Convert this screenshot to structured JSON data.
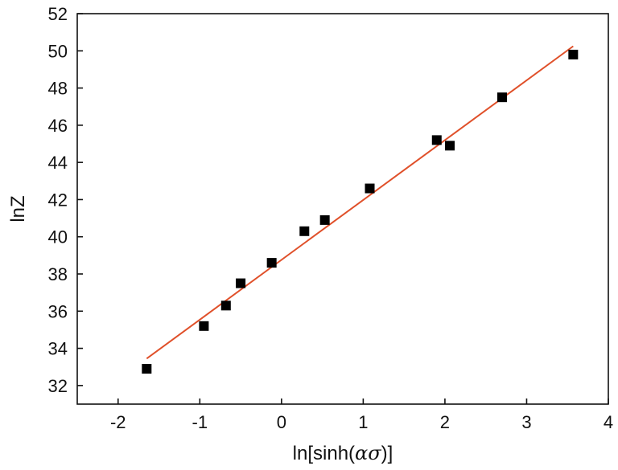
{
  "chart_data": {
    "type": "scatter",
    "xlabel_prefix": "ln[sinh(",
    "xlabel_math": "ασ",
    "xlabel_suffix": ")]",
    "ylabel": "lnZ",
    "xlim": [
      -2.5,
      4
    ],
    "ylim": [
      31,
      52
    ],
    "xticks": [
      -2,
      -1,
      0,
      1,
      2,
      3,
      4
    ],
    "yticks": [
      32,
      34,
      36,
      38,
      40,
      42,
      44,
      46,
      48,
      50,
      52
    ],
    "grid": false,
    "legend": "none",
    "points": [
      {
        "x": -1.65,
        "y": 32.9
      },
      {
        "x": -0.95,
        "y": 35.2
      },
      {
        "x": -0.68,
        "y": 36.3
      },
      {
        "x": -0.5,
        "y": 37.5
      },
      {
        "x": -0.12,
        "y": 38.6
      },
      {
        "x": 0.28,
        "y": 40.3
      },
      {
        "x": 0.53,
        "y": 40.9
      },
      {
        "x": 1.08,
        "y": 42.6
      },
      {
        "x": 1.9,
        "y": 45.2
      },
      {
        "x": 2.06,
        "y": 44.9
      },
      {
        "x": 2.7,
        "y": 47.5
      },
      {
        "x": 3.57,
        "y": 49.8
      }
    ],
    "fit_line": {
      "x": [
        -1.65,
        3.57
      ],
      "y": [
        33.45,
        50.25
      ]
    },
    "colors": {
      "points": "#000000",
      "fit": "#e0502a"
    }
  }
}
